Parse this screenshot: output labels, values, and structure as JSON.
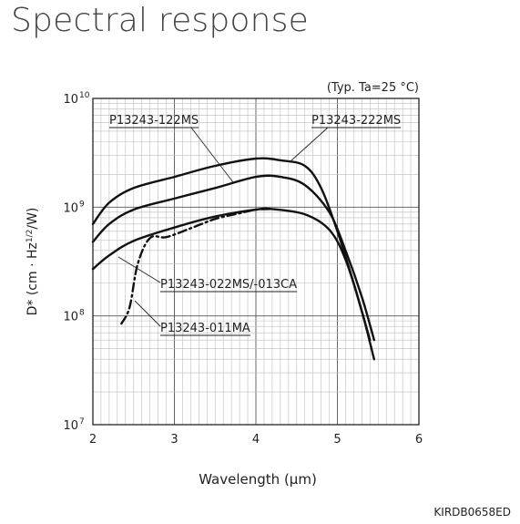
{
  "title": "Spectral response",
  "figure_code": "KIRDB0658ED",
  "chart_data": {
    "type": "line",
    "title": "Spectral response",
    "condition": "(Typ. Ta=25 °C)",
    "xlabel": "Wavelength (µm)",
    "ylabel": "D* (cm · Hz1/2/W)",
    "ylabel_parts": {
      "main": "D* (cm · Hz",
      "sup": "1/2",
      "tail": "/W)"
    },
    "xlim": [
      2,
      6
    ],
    "ylim": [
      10000000,
      10000000000
    ],
    "yscale": "log",
    "grid": true,
    "x_ticks": [
      "2",
      "3",
      "4",
      "5",
      "6"
    ],
    "y_ticks": [
      {
        "value": 10000000000,
        "base": "10",
        "exp": "10"
      },
      {
        "value": 1000000000,
        "base": "10",
        "exp": "9"
      },
      {
        "value": 100000000,
        "base": "10",
        "exp": "8"
      },
      {
        "value": 10000000,
        "base": "10",
        "exp": "7"
      }
    ],
    "series": [
      {
        "name": "P13243-222MS",
        "style": "solid",
        "x": [
          2.0,
          2.2,
          2.5,
          3.0,
          3.5,
          4.0,
          4.3,
          4.6,
          4.8,
          5.0,
          5.2,
          5.4
        ],
        "y": [
          700000000,
          1100000000,
          1500000000,
          1900000000,
          2400000000,
          2800000000,
          2700000000,
          2400000000,
          1500000000,
          600000000,
          200000000,
          60000000
        ]
      },
      {
        "name": "P13243-122MS",
        "style": "solid",
        "x": [
          2.0,
          2.2,
          2.5,
          3.0,
          3.5,
          4.0,
          4.3,
          4.6,
          4.9,
          5.1,
          5.3,
          5.45
        ],
        "y": [
          480000000,
          700000000,
          950000000,
          1200000000,
          1500000000,
          1900000000,
          1900000000,
          1600000000,
          900000000,
          400000000,
          150000000,
          60000000
        ]
      },
      {
        "name": "P13243-022MS/-013CA",
        "style": "solid",
        "x": [
          2.0,
          2.2,
          2.5,
          3.0,
          3.5,
          4.0,
          4.2,
          4.6,
          4.9,
          5.1,
          5.3,
          5.45
        ],
        "y": [
          270000000,
          360000000,
          490000000,
          650000000,
          820000000,
          950000000,
          960000000,
          860000000,
          620000000,
          330000000,
          110000000,
          40000000
        ]
      },
      {
        "name": "P13243-011MA",
        "style": "dash-dot",
        "x": [
          2.35,
          2.45,
          2.55,
          2.7,
          2.9,
          3.2,
          3.5,
          3.8,
          4.0,
          4.2
        ],
        "y": [
          85000000,
          120000000,
          300000000,
          520000000,
          530000000,
          640000000,
          780000000,
          880000000,
          950000000,
          960000000
        ]
      }
    ]
  }
}
